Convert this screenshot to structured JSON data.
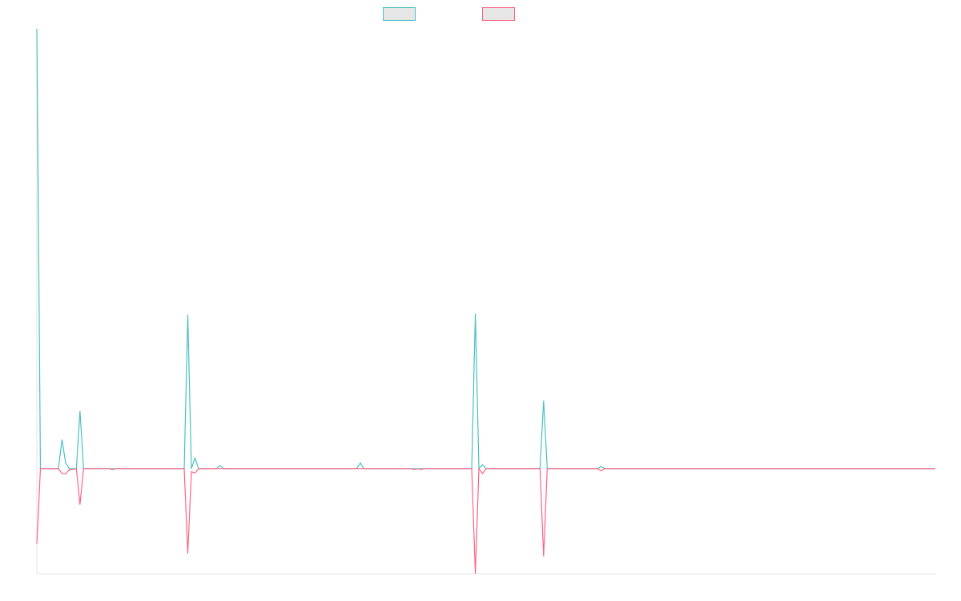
{
  "chart_data": {
    "type": "line",
    "x": [
      0,
      1,
      6,
      7,
      8,
      9,
      11,
      12,
      13,
      20,
      21,
      22,
      41,
      42,
      43,
      44,
      45,
      50,
      51,
      52,
      89,
      90,
      91,
      104,
      105,
      106,
      107,
      108,
      121,
      122,
      123,
      124,
      125,
      140,
      141,
      142,
      156,
      157,
      158,
      250
    ],
    "xlim": [
      0,
      250
    ],
    "ylim": [
      -23.9,
      100
    ],
    "grid": false,
    "legend": "top",
    "series": [
      {
        "color": "#4bc0c0",
        "values": [
          100,
          0,
          0,
          6.6,
          1.3,
          0,
          0,
          13.1,
          0,
          0,
          0,
          0,
          0,
          35,
          0,
          2.4,
          0,
          0,
          0.7,
          0,
          0,
          1.3,
          0,
          0,
          0,
          0,
          0,
          0,
          0,
          35.3,
          0,
          0.9,
          0,
          0,
          15.5,
          0,
          0,
          0.5,
          0,
          0
        ]
      },
      {
        "color": "#ff6384",
        "values": [
          -17.1,
          0,
          0,
          -1.1,
          -1.2,
          -0.3,
          0,
          -8.2,
          0,
          0,
          -0.2,
          0,
          0,
          -19.3,
          -0.7,
          -1,
          0,
          0,
          0,
          0,
          0,
          0,
          0,
          0,
          -0.2,
          0,
          -0.2,
          0,
          0,
          -23.9,
          0,
          -1.1,
          0,
          0,
          -20,
          0,
          0,
          -0.5,
          0,
          0
        ]
      }
    ]
  }
}
